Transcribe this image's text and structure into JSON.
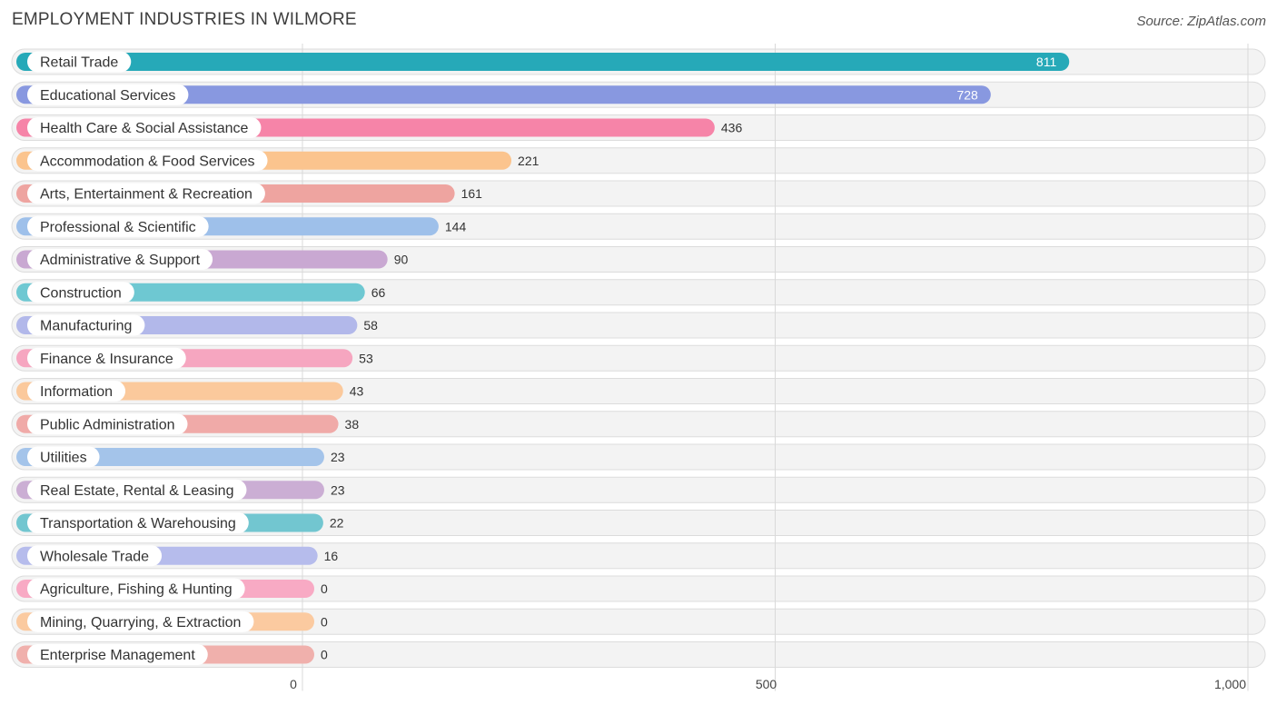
{
  "header": {
    "title": "EMPLOYMENT INDUSTRIES IN WILMORE",
    "source": "Source: ZipAtlas.com"
  },
  "chart_data": {
    "type": "bar",
    "orientation": "horizontal",
    "title": "EMPLOYMENT INDUSTRIES IN WILMORE",
    "xlabel": "",
    "ylabel": "",
    "xlim": [
      0,
      1000
    ],
    "x_ticks": [
      0,
      500,
      1000
    ],
    "x_tick_labels": [
      "0",
      "500",
      "1,000"
    ],
    "grid": true,
    "categories": [
      "Retail Trade",
      "Educational Services",
      "Health Care & Social Assistance",
      "Accommodation & Food Services",
      "Arts, Entertainment & Recreation",
      "Professional & Scientific",
      "Administrative & Support",
      "Construction",
      "Manufacturing",
      "Finance & Insurance",
      "Information",
      "Public Administration",
      "Utilities",
      "Real Estate, Rental & Leasing",
      "Transportation & Warehousing",
      "Wholesale Trade",
      "Agriculture, Fishing & Hunting",
      "Mining, Quarrying, & Extraction",
      "Enterprise Management"
    ],
    "values": [
      811,
      728,
      436,
      221,
      161,
      144,
      90,
      66,
      58,
      53,
      43,
      38,
      23,
      23,
      22,
      16,
      0,
      0,
      0
    ],
    "value_labels": [
      "811",
      "728",
      "436",
      "221",
      "161",
      "144",
      "90",
      "66",
      "58",
      "53",
      "43",
      "38",
      "23",
      "23",
      "22",
      "16",
      "0",
      "0",
      "0"
    ],
    "colors": [
      "#26a9b8",
      "#8898e0",
      "#f684a8",
      "#fbc48e",
      "#eea4a0",
      "#9ec0ea",
      "#c9a8d2",
      "#6ec8d2",
      "#b2b8ea",
      "#f6a6c0",
      "#fbc99c",
      "#f0aaa8",
      "#a4c4ea",
      "#cbaed4",
      "#72c6d0",
      "#b6bcec",
      "#f8aac4",
      "#fbcaa0",
      "#f0b0ac"
    ]
  }
}
